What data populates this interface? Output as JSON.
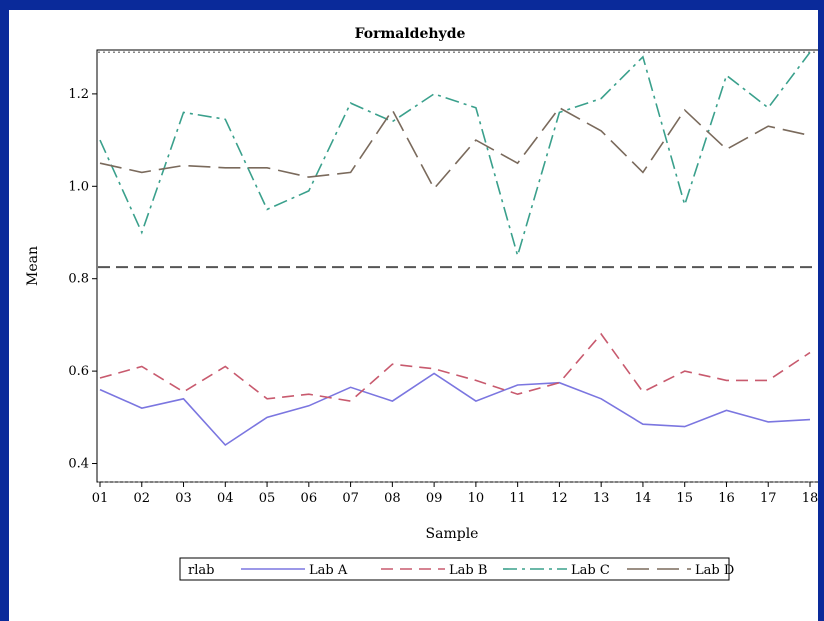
{
  "chart_data": {
    "type": "line",
    "title": "Formaldehyde",
    "xlabel": "Sample",
    "ylabel": "Mean",
    "categories": [
      "01",
      "02",
      "03",
      "04",
      "05",
      "06",
      "07",
      "08",
      "09",
      "10",
      "11",
      "12",
      "13",
      "14",
      "15",
      "16",
      "17",
      "18"
    ],
    "ylim": [
      0.36,
      1.295
    ],
    "yticks": [
      "0.4",
      "0.6",
      "0.8",
      "1.0",
      "1.2"
    ],
    "reference_lines": [
      {
        "value": 1.29,
        "style": "dotted"
      },
      {
        "value": 0.825,
        "style": "dashed"
      },
      {
        "value": 0.36,
        "style": "dotted"
      }
    ],
    "legend_title": "rlab",
    "series": [
      {
        "name": "Lab A",
        "color": "#7b76e0",
        "dash": "",
        "values": [
          0.56,
          0.52,
          0.54,
          0.44,
          0.5,
          0.525,
          0.565,
          0.535,
          0.595,
          0.535,
          0.57,
          0.575,
          0.54,
          0.485,
          0.48,
          0.515,
          0.49,
          0.495
        ]
      },
      {
        "name": "Lab B",
        "color": "#c85a6e",
        "dash": "12,7",
        "values": [
          0.585,
          0.61,
          0.555,
          0.61,
          0.54,
          0.55,
          0.535,
          0.615,
          0.605,
          0.58,
          0.55,
          0.575,
          0.68,
          0.555,
          0.6,
          0.58,
          0.58,
          0.64
        ]
      },
      {
        "name": "Lab C",
        "color": "#3aa08c",
        "dash": "14,5,3,5",
        "values": [
          1.1,
          0.9,
          1.16,
          1.145,
          0.95,
          0.99,
          1.18,
          1.14,
          1.2,
          1.17,
          0.85,
          1.16,
          1.19,
          1.28,
          0.96,
          1.24,
          1.17,
          1.29
        ]
      },
      {
        "name": "Lab D",
        "color": "#7a6a5c",
        "dash": "22,8",
        "values": [
          1.05,
          1.03,
          1.045,
          1.04,
          1.04,
          1.02,
          1.03,
          1.165,
          0.995,
          1.1,
          1.05,
          1.17,
          1.12,
          1.03,
          1.165,
          1.08,
          1.13,
          1.11
        ]
      }
    ]
  }
}
